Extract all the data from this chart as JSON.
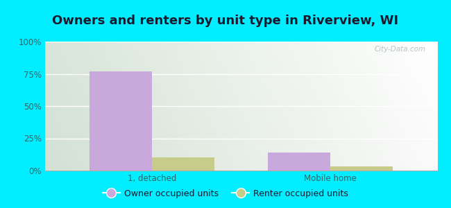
{
  "title": "Owners and renters by unit type in Riverview, WI",
  "categories": [
    "1, detached",
    "Mobile home"
  ],
  "owner_values": [
    77,
    14
  ],
  "renter_values": [
    10,
    3
  ],
  "owner_color": "#c9a8dc",
  "renter_color": "#c8cc8a",
  "ylim": [
    0,
    100
  ],
  "yticks": [
    0,
    25,
    50,
    75,
    100
  ],
  "ytick_labels": [
    "0%",
    "25%",
    "50%",
    "75%",
    "100%"
  ],
  "background_color": "#00eeff",
  "plot_bg_topleft": "#d6ecd6",
  "plot_bg_topright": "#eef8f8",
  "plot_bg_bottomleft": "#d6ecd6",
  "plot_bg_bottomright": "#eef8f8",
  "legend_owner": "Owner occupied units",
  "legend_renter": "Renter occupied units",
  "bar_width": 0.35,
  "title_fontsize": 13,
  "watermark": "City-Data.com",
  "grid_color": "#ffffff",
  "title_color": "#1a1a2e",
  "tick_color": "#336666"
}
